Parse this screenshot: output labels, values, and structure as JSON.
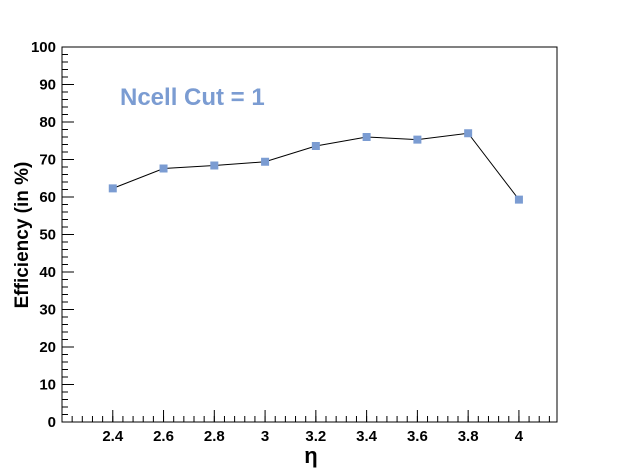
{
  "chart_data": {
    "type": "line",
    "xlabel": "η",
    "ylabel": "Efficiency (in %)",
    "annotation": "Ncell Cut = 1",
    "xlim": [
      2.2,
      4.15
    ],
    "ylim": [
      0,
      100
    ],
    "x_ticks": [
      "2.4",
      "2.6",
      "2.8",
      "3",
      "3.2",
      "3.4",
      "3.6",
      "3.8",
      "4"
    ],
    "y_ticks": [
      "0",
      "10",
      "20",
      "30",
      "40",
      "50",
      "60",
      "70",
      "80",
      "90",
      "100"
    ],
    "series": [
      {
        "x": [
          2.4,
          2.6,
          2.8,
          3.0,
          3.2,
          3.4,
          3.6,
          3.8,
          4.0
        ],
        "y": [
          62.3,
          67.6,
          68.4,
          69.4,
          73.6,
          76.0,
          75.3,
          77.0,
          59.3
        ]
      }
    ],
    "colors": {
      "marker": "#7b9cd2",
      "line": "#000000",
      "annotation": "#7b9cd2"
    },
    "grid": false,
    "legend": "none"
  }
}
